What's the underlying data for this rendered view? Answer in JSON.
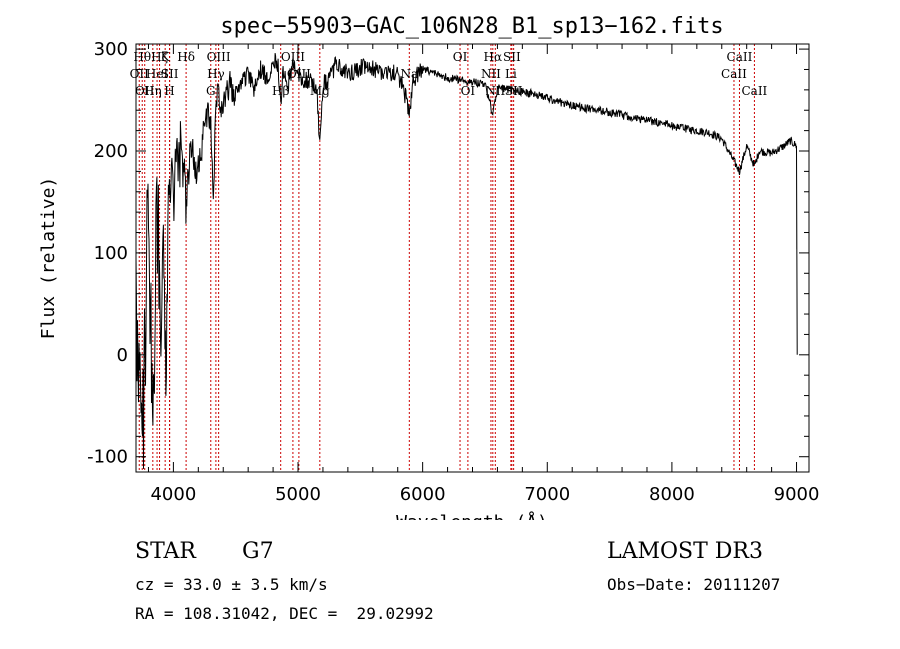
{
  "chart_data": {
    "type": "line",
    "title": "spec−55903−GAC_106N28_B1_sp13−162.fits",
    "xlabel": "Wavelength (Å)",
    "ylabel": "Flux (relative)",
    "xlim": [
      3700,
      9100
    ],
    "ylim": [
      -115,
      305
    ],
    "xticks": [
      4000,
      5000,
      6000,
      7000,
      8000,
      9000
    ],
    "yticks": [
      -100,
      0,
      100,
      200,
      300
    ],
    "line_color": "#000000",
    "marker_color": "#cc0000",
    "series": [
      {
        "name": "flux",
        "x": [
          3700,
          3720,
          3740,
          3760,
          3780,
          3800,
          3820,
          3840,
          3860,
          3880,
          3900,
          3920,
          3940,
          3960,
          3980,
          4000,
          4030,
          4060,
          4100,
          4140,
          4180,
          4220,
          4260,
          4300,
          4320,
          4340,
          4360,
          4400,
          4450,
          4500,
          4550,
          4600,
          4650,
          4700,
          4750,
          4800,
          4840,
          4861,
          4880,
          4920,
          4960,
          5000,
          5050,
          5100,
          5150,
          5175,
          5200,
          5250,
          5300,
          5400,
          5500,
          5600,
          5700,
          5800,
          5850,
          5893,
          5920,
          6000,
          6100,
          6200,
          6300,
          6400,
          6500,
          6563,
          6600,
          6700,
          6800,
          6900,
          7000,
          7100,
          7200,
          7300,
          7400,
          7500,
          7600,
          7700,
          7800,
          7900,
          8000,
          8100,
          8200,
          8300,
          8400,
          8498,
          8542,
          8600,
          8662,
          8700,
          8800,
          8900,
          8950,
          9000,
          9005
        ],
        "y": [
          40,
          -60,
          10,
          -80,
          60,
          150,
          20,
          -30,
          90,
          130,
          10,
          120,
          -40,
          140,
          170,
          160,
          180,
          200,
          140,
          210,
          180,
          190,
          240,
          230,
          140,
          250,
          260,
          240,
          265,
          255,
          270,
          275,
          260,
          280,
          270,
          290,
          285,
          250,
          275,
          265,
          285,
          275,
          270,
          268,
          262,
          205,
          265,
          270,
          285,
          275,
          282,
          280,
          278,
          275,
          260,
          235,
          270,
          280,
          276,
          272,
          270,
          268,
          266,
          235,
          262,
          260,
          258,
          256,
          252,
          248,
          245,
          242,
          240,
          238,
          235,
          232,
          230,
          228,
          225,
          222,
          220,
          218,
          212,
          190,
          180,
          205,
          185,
          200,
          198,
          205,
          210,
          205,
          0
        ]
      }
    ],
    "lines": [
      {
        "wave": 3726,
        "label": "OII",
        "row": 2
      },
      {
        "wave": 3750,
        "label": "Hθ",
        "row": 1
      },
      {
        "wave": 3770,
        "label": "OII",
        "row": 3
      },
      {
        "wave": 3835,
        "label": "Hη",
        "row": 3
      },
      {
        "wave": 3869,
        "label": "HeI",
        "row": 2
      },
      {
        "wave": 3889,
        "label": "Hζ",
        "row": 1
      },
      {
        "wave": 3934,
        "label": "K",
        "row": 1
      },
      {
        "wave": 3969,
        "label": "H",
        "row": 3
      },
      {
        "wave": 3970,
        "label": "SII",
        "row": 2
      },
      {
        "wave": 4102,
        "label": "Hδ",
        "row": 1
      },
      {
        "wave": 4300,
        "label": "G",
        "row": 3
      },
      {
        "wave": 4341,
        "label": "Hγ",
        "row": 2
      },
      {
        "wave": 4363,
        "label": "OIII",
        "row": 1
      },
      {
        "wave": 4861,
        "label": "Hβ",
        "row": 3
      },
      {
        "wave": 4959,
        "label": "OIII",
        "row": 1
      },
      {
        "wave": 5007,
        "label": "OIII",
        "row": 2
      },
      {
        "wave": 5175,
        "label": "Mg",
        "row": 3
      },
      {
        "wave": 5893,
        "label": "Na",
        "row": 2
      },
      {
        "wave": 6300,
        "label": "OI",
        "row": 1
      },
      {
        "wave": 6363,
        "label": "OI",
        "row": 3
      },
      {
        "wave": 6548,
        "label": "NII",
        "row": 2
      },
      {
        "wave": 6563,
        "label": "Hα",
        "row": 1
      },
      {
        "wave": 6583,
        "label": "NII",
        "row": 3
      },
      {
        "wave": 6708,
        "label": "Li",
        "row": 2
      },
      {
        "wave": 6716,
        "label": "SII",
        "row": 1
      },
      {
        "wave": 6730,
        "label": "SII",
        "row": 3
      },
      {
        "wave": 8498,
        "label": "CaII",
        "row": 2
      },
      {
        "wave": 8542,
        "label": "CaII",
        "row": 1
      },
      {
        "wave": 8662,
        "label": "CaII",
        "row": 3
      }
    ]
  },
  "info": {
    "object_class": "STAR",
    "subclass": "G7",
    "survey": "LAMOST DR3",
    "redshift": "cz = 33.0 ± 3.5 km/s",
    "obs_date": "Obs−Date: 20111207",
    "coords": "RA = 108.31042, DEC =  29.02992"
  }
}
